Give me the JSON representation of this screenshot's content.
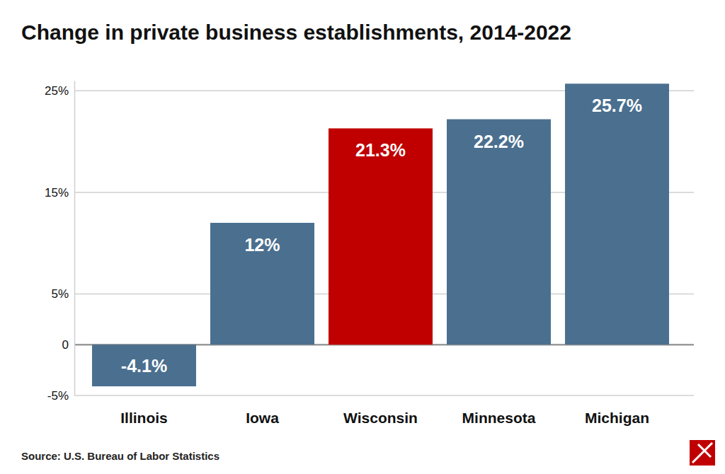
{
  "chart_data": {
    "type": "bar",
    "title": "Change in private business establishments, 2014-2022",
    "source": "Source: U.S. Bureau of Labor Statistics",
    "categories": [
      "Illinois",
      "Iowa",
      "Wisconsin",
      "Minnesota",
      "Michigan"
    ],
    "values": [
      -4.1,
      12,
      21.3,
      22.2,
      25.7
    ],
    "value_labels": [
      "-4.1%",
      "12%",
      "21.3%",
      "22.2%",
      "25.7%"
    ],
    "colors": [
      "#4a6f8f",
      "#4a6f8f",
      "#c00000",
      "#4a6f8f",
      "#4a6f8f"
    ],
    "ylim": [
      -5,
      26
    ],
    "yticks": [
      {
        "value": -5,
        "label": "-5%"
      },
      0,
      {
        "value": 5,
        "label": "5%"
      },
      {
        "value": 15,
        "label": "15%"
      },
      {
        "value": 25,
        "label": "25%"
      }
    ],
    "grid": true,
    "data_labels": true
  }
}
